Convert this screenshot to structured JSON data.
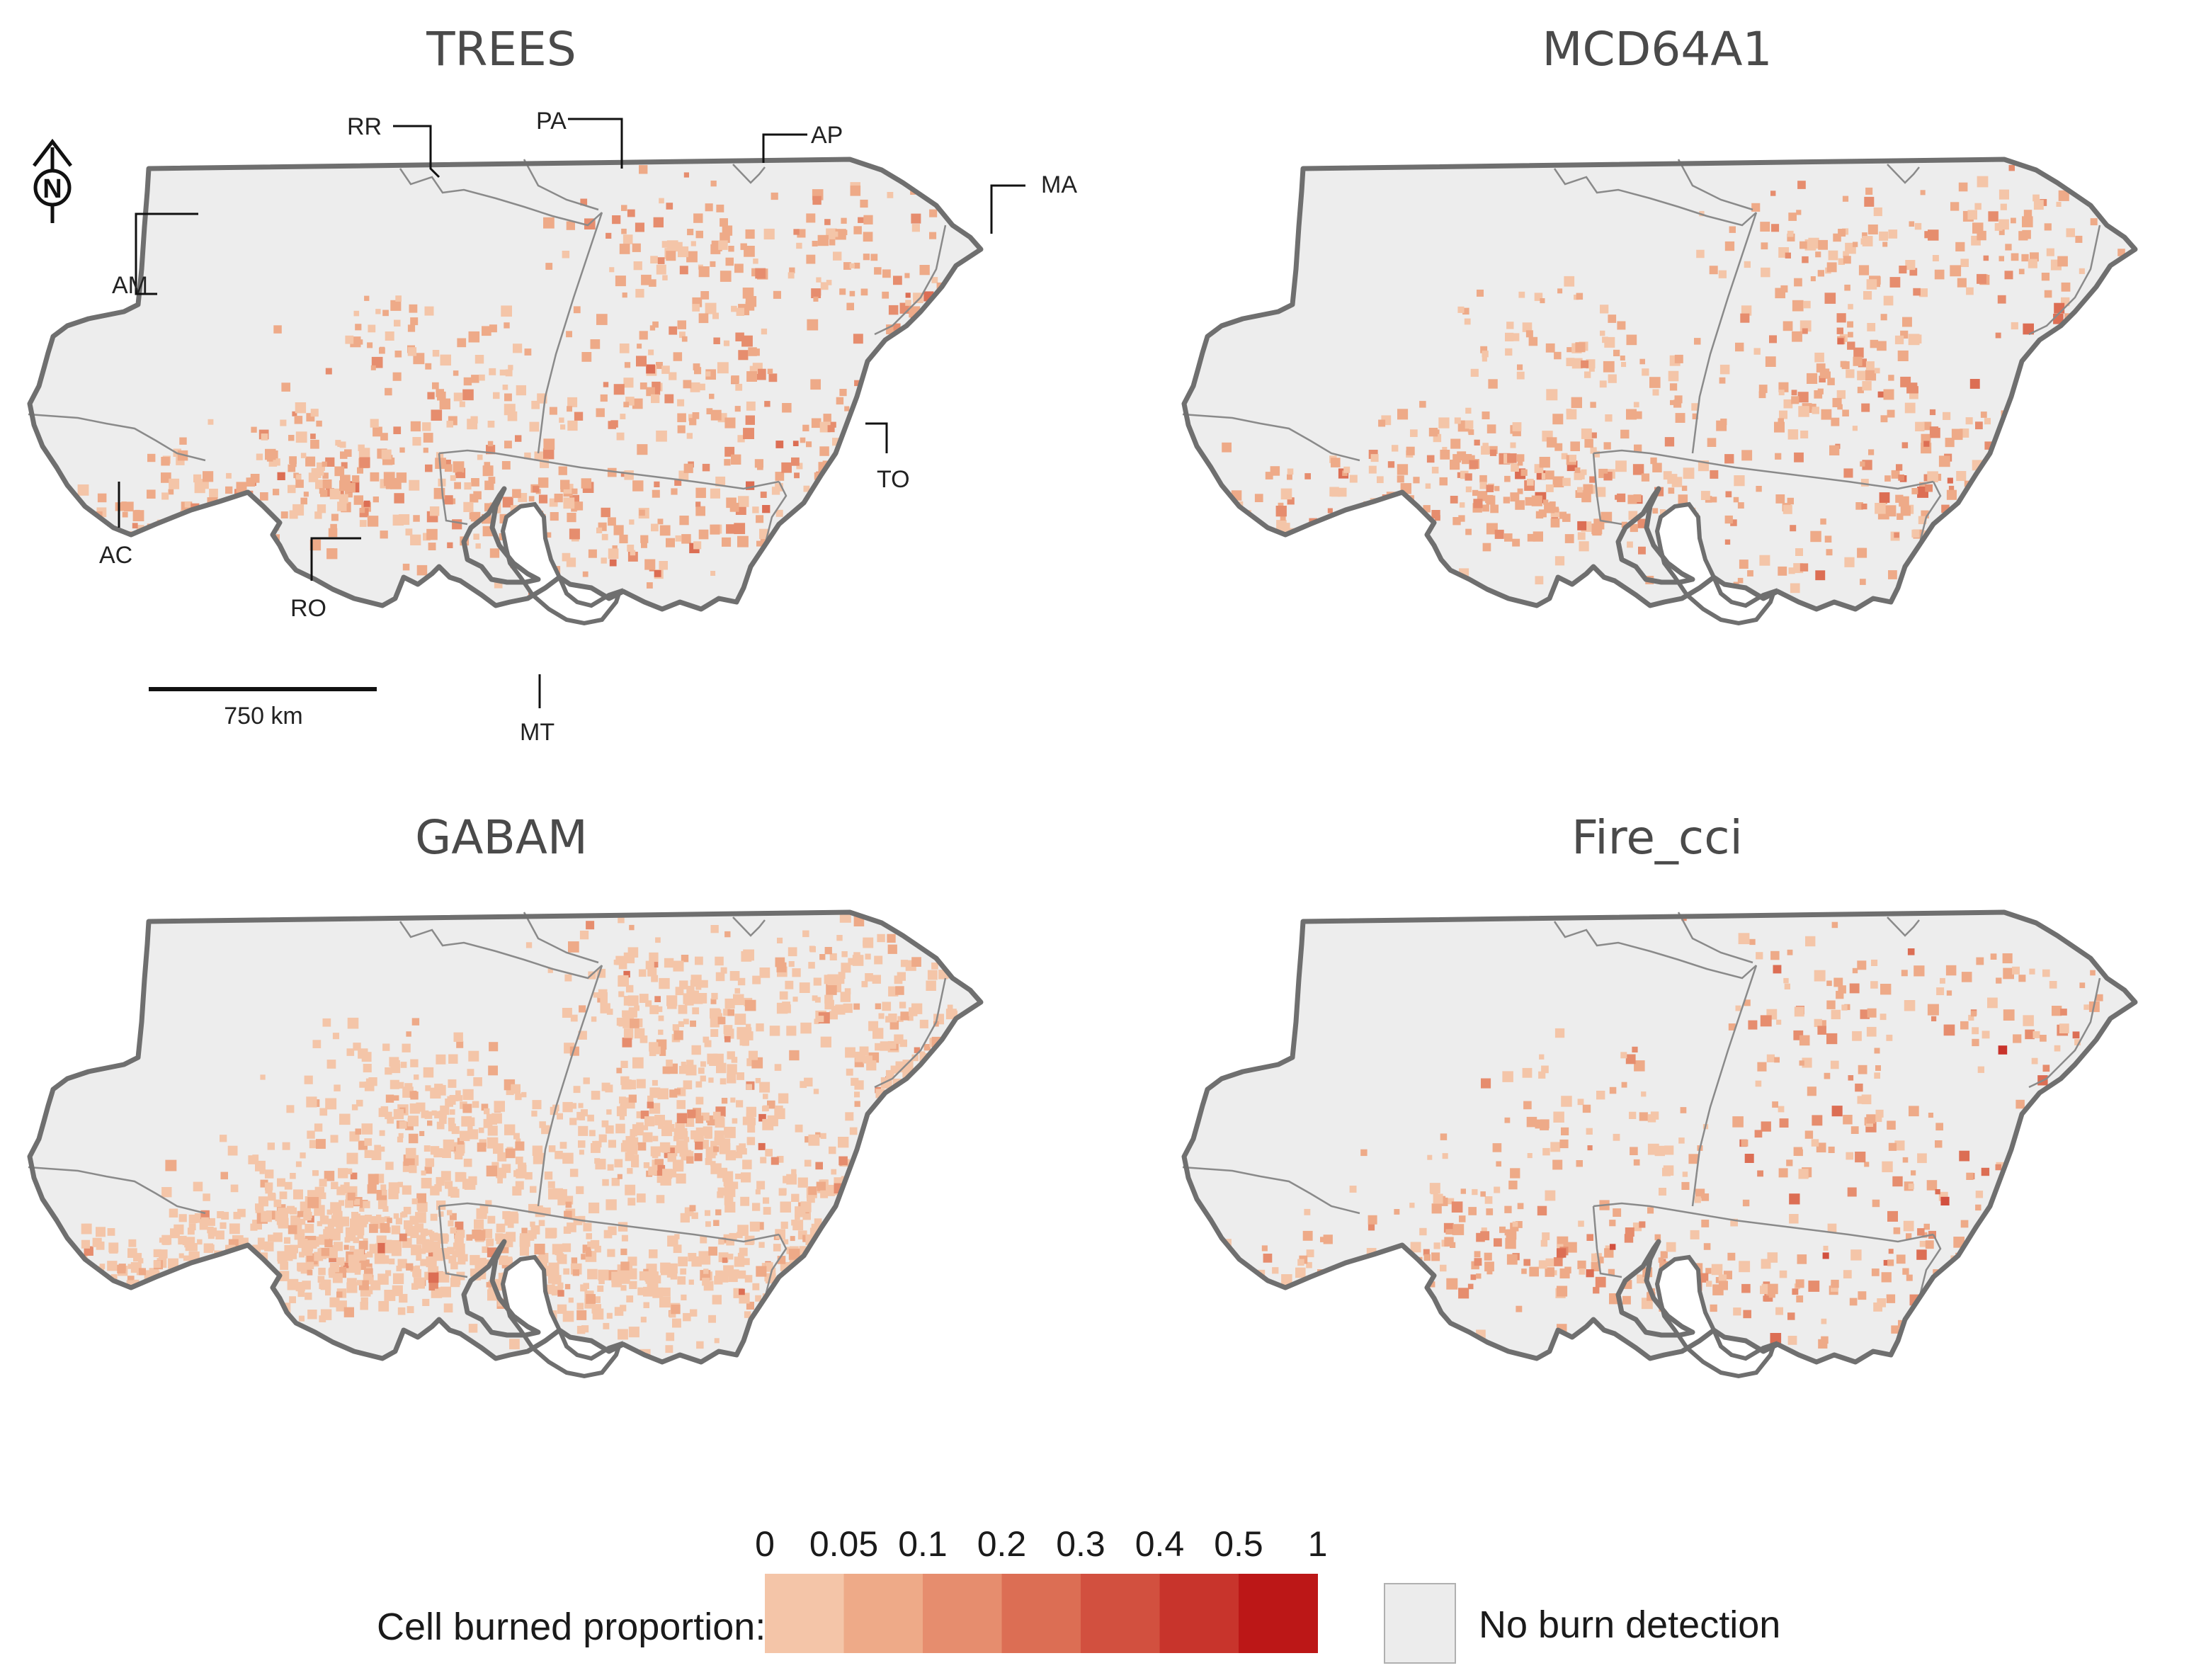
{
  "panels": [
    {
      "title": "TREES",
      "seed": 11,
      "density": 1.0,
      "style": "trees"
    },
    {
      "title": "MCD64A1",
      "seed": 23,
      "density": 0.95,
      "style": "mcd"
    },
    {
      "title": "GABAM",
      "seed": 37,
      "density": 2.2,
      "style": "gabam"
    },
    {
      "title": "Fire_cci",
      "seed": 51,
      "density": 0.7,
      "style": "cci"
    }
  ],
  "state_labels": [
    "RR",
    "PA",
    "AP",
    "MA",
    "AM",
    "TO",
    "AC",
    "RO",
    "MT"
  ],
  "north_arrow": {
    "label": "N"
  },
  "scale_bar": {
    "label": "750 km"
  },
  "legend": {
    "title": "Cell burned proportion:",
    "breaks": [
      "0",
      "0.05",
      "0.1",
      "0.2",
      "0.3",
      "0.4",
      "0.5",
      "1"
    ],
    "colors": [
      "#f4c5a8",
      "#eeaa88",
      "#e68d6e",
      "#dc6e54",
      "#d2503f",
      "#c8342c",
      "#bc1717"
    ],
    "no_burn_label": "No burn detection",
    "no_burn_color": "#ececec"
  },
  "colors": {
    "background": "#ffffff",
    "map_fill": "#ededed",
    "outline": "#6f6f6f",
    "state_border": "#8a8a8a"
  }
}
